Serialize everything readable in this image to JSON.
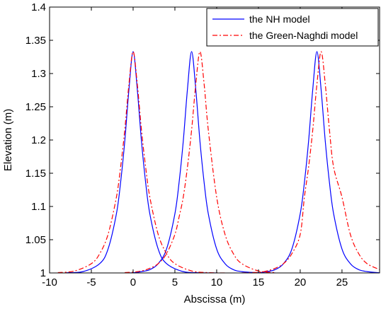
{
  "chart_data": {
    "type": "line",
    "title": "",
    "xlabel": "Abscissa (m)",
    "ylabel": "Elevation (m)",
    "xlim": [
      -10,
      29.5
    ],
    "ylim": [
      1,
      1.4
    ],
    "xticks": [
      -10,
      -5,
      0,
      5,
      10,
      15,
      20,
      25
    ],
    "yticks": [
      1,
      1.05,
      1.1,
      1.15,
      1.2,
      1.25,
      1.3,
      1.35,
      1.4
    ],
    "xtick_labels": [
      "-10",
      "-5",
      "0",
      "5",
      "10",
      "15",
      "20",
      "25"
    ],
    "ytick_labels": [
      "1",
      "1.05",
      "1.1",
      "1.15",
      "1.2",
      "1.25",
      "1.3",
      "1.35",
      "1.4"
    ],
    "grid": false,
    "legend_position": "top-right",
    "series": [
      {
        "name": "the NH model",
        "color": "#0000ff",
        "style": "solid",
        "peaks": [
          {
            "x": [
              -8,
              -6,
              -4,
              -3,
              -2,
              -1.5,
              -1,
              -0.5,
              0,
              0.5,
              1,
              1.5,
              2,
              3,
              4,
              6,
              8,
              10
            ],
            "y": [
              1.0003,
              1.002,
              1.014,
              1.036,
              1.089,
              1.136,
              1.198,
              1.276,
              1.333,
              1.276,
              1.198,
              1.136,
              1.089,
              1.036,
              1.014,
              1.002,
              1.0003,
              1.0
            ]
          },
          {
            "x": [
              -1,
              0,
              1,
              2,
              3,
              4,
              5,
              5.5,
              6,
              6.5,
              7,
              7.5,
              8,
              8.5,
              9,
              10,
              11,
              12,
              13,
              15,
              17
            ],
            "y": [
              1.0,
              1.0003,
              1.002,
              1.005,
              1.014,
              1.036,
              1.089,
              1.136,
              1.198,
              1.276,
              1.333,
              1.276,
              1.198,
              1.136,
              1.089,
              1.036,
              1.014,
              1.005,
              1.002,
              1.0003,
              1.0
            ]
          },
          {
            "x": [
              13,
              15,
              16,
              17,
              18,
              19,
              20,
              20.5,
              21,
              21.5,
              22,
              22.5,
              23,
              23.5,
              24,
              25,
              26,
              27,
              28,
              29.5
            ],
            "y": [
              1.0,
              1.0003,
              1.002,
              1.005,
              1.014,
              1.036,
              1.089,
              1.136,
              1.198,
              1.276,
              1.333,
              1.276,
              1.198,
              1.136,
              1.089,
              1.036,
              1.014,
              1.005,
              1.002,
              1.0003
            ]
          }
        ]
      },
      {
        "name": "the Green-Naghdi model",
        "color": "#ff0000",
        "style": "dash-dot",
        "peaks": [
          {
            "x": [
              -9,
              -7,
              -5,
              -4,
              -3,
              -2,
              -1.5,
              -1,
              -0.5,
              0,
              0.5,
              1,
              1.5,
              2,
              3,
              4,
              5,
              7,
              9,
              11
            ],
            "y": [
              1.0005,
              1.003,
              1.014,
              1.029,
              1.058,
              1.114,
              1.159,
              1.215,
              1.284,
              1.333,
              1.284,
              1.215,
              1.159,
              1.114,
              1.058,
              1.029,
              1.014,
              1.003,
              1.0005,
              1.0
            ]
          },
          {
            "x": [
              -1,
              0,
              1,
              2,
              3,
              4,
              5,
              5.5,
              6,
              6.5,
              7,
              7.5,
              8,
              8.5,
              9,
              10,
              11,
              12,
              13,
              15,
              17
            ],
            "y": [
              1.0005,
              1.0013,
              1.003,
              1.007,
              1.014,
              1.029,
              1.058,
              1.084,
              1.114,
              1.159,
              1.215,
              1.284,
              1.333,
              1.284,
              1.215,
              1.114,
              1.058,
              1.029,
              1.014,
              1.003,
              1.0005
            ]
          },
          {
            "x": [
              13,
              15,
              16,
              17,
              18,
              19,
              20,
              20.5,
              21,
              21.5,
              22,
              22.5,
              23,
              23.5,
              24,
              25,
              26,
              27,
              28,
              29.5
            ],
            "y": [
              1.0,
              1.001,
              1.003,
              1.007,
              1.014,
              1.029,
              1.058,
              1.114,
              1.159,
              1.215,
              1.284,
              1.333,
              1.284,
              1.215,
              1.159,
              1.114,
              1.058,
              1.029,
              1.014,
              1.005
            ]
          }
        ]
      }
    ]
  }
}
